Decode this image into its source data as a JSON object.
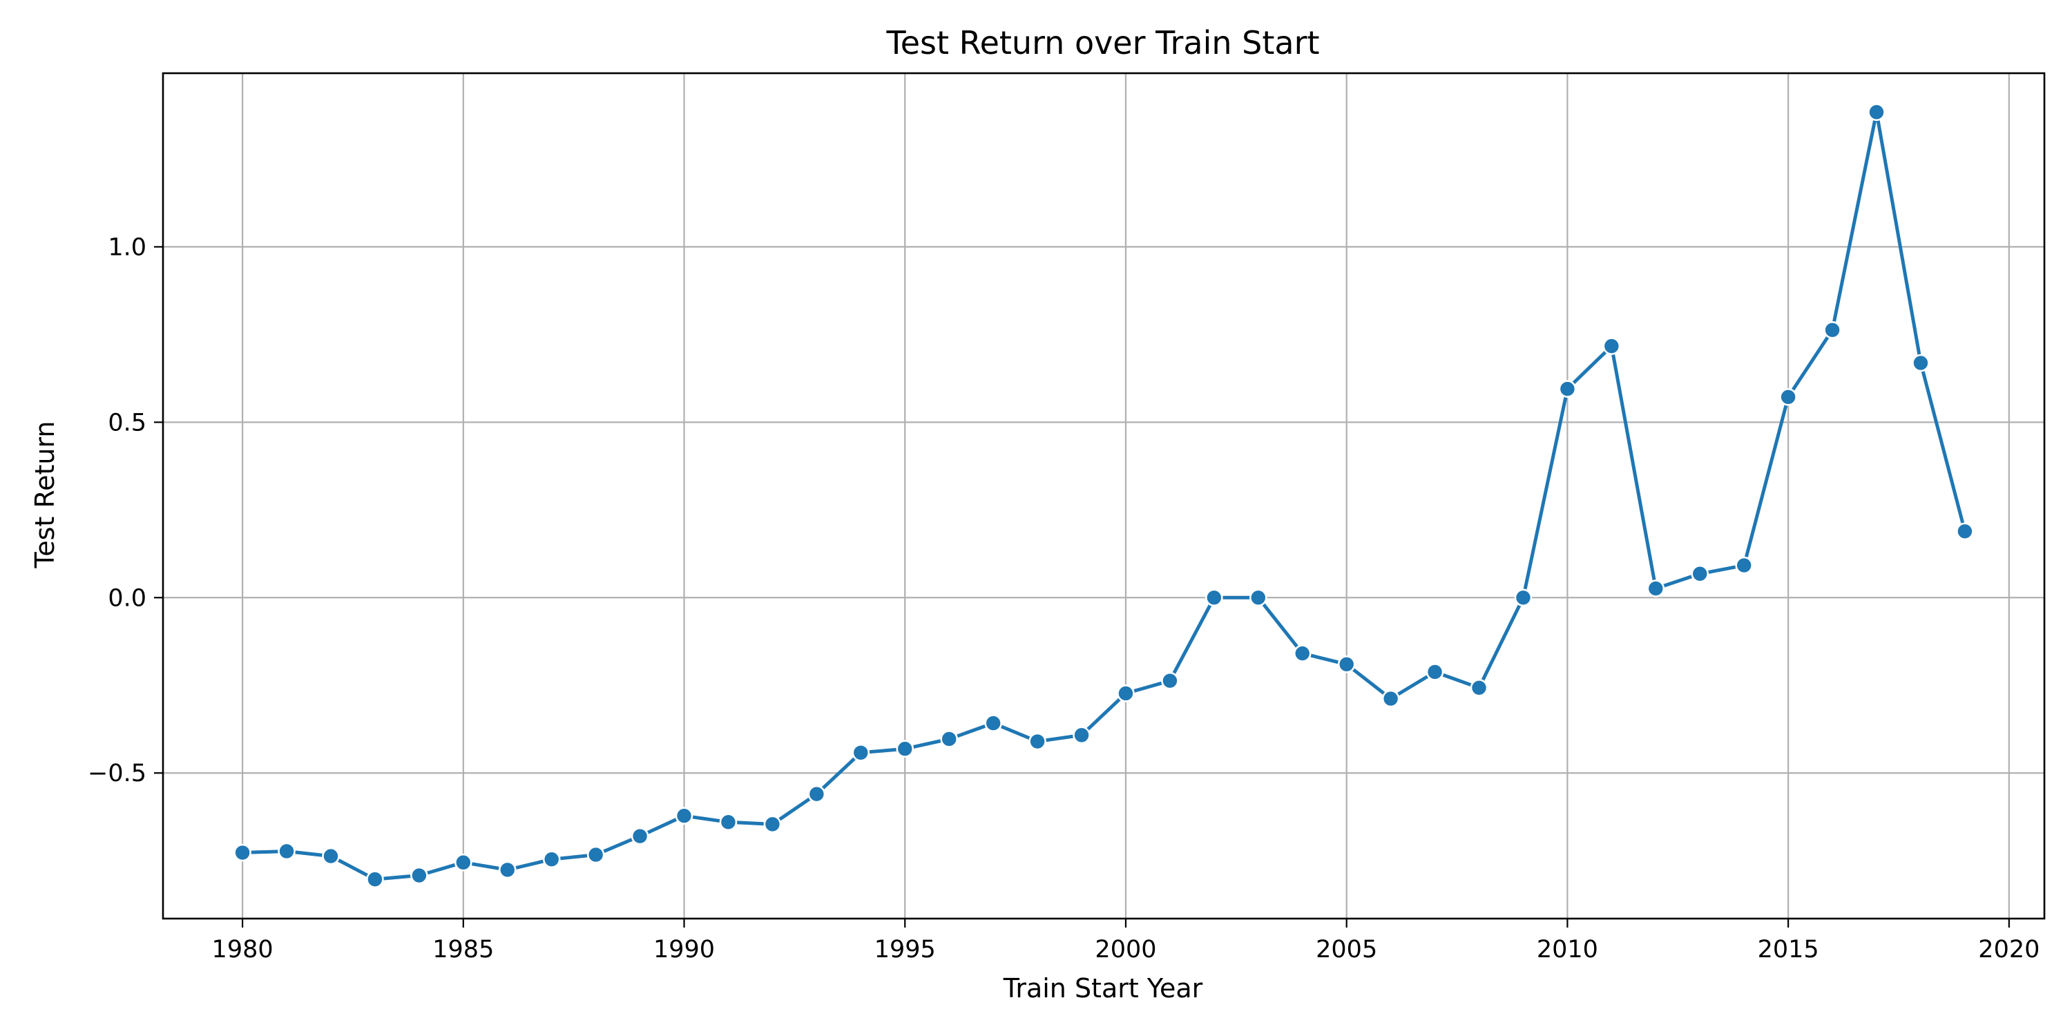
{
  "chart_data": {
    "type": "line",
    "title": "Test Return over Train Start",
    "xlabel": "Train Start Year",
    "ylabel": "Test Return",
    "xlim": [
      1978.2,
      2020.8
    ],
    "ylim": [
      -0.915,
      1.495
    ],
    "xticks": [
      1980,
      1985,
      1990,
      1995,
      2000,
      2005,
      2010,
      2015,
      2020
    ],
    "xtick_labels": [
      "1980",
      "1985",
      "1990",
      "1995",
      "2000",
      "2005",
      "2010",
      "2015",
      "2020"
    ],
    "yticks": [
      -0.5,
      0.0,
      0.5,
      1.0
    ],
    "ytick_labels": [
      "−0.5",
      "0.0",
      "0.5",
      "1.0"
    ],
    "grid": true,
    "marker": "circle",
    "color": "#1f77b4",
    "x": [
      1980,
      1981,
      1982,
      1983,
      1984,
      1985,
      1986,
      1987,
      1988,
      1989,
      1990,
      1991,
      1992,
      1993,
      1994,
      1995,
      1996,
      1997,
      1998,
      1999,
      2000,
      2001,
      2002,
      2003,
      2004,
      2005,
      2006,
      2007,
      2008,
      2009,
      2010,
      2011,
      2012,
      2013,
      2014,
      2015,
      2016,
      2017,
      2018,
      2019
    ],
    "y": [
      -0.727,
      -0.723,
      -0.737,
      -0.803,
      -0.792,
      -0.755,
      -0.776,
      -0.746,
      -0.733,
      -0.68,
      -0.622,
      -0.64,
      -0.646,
      -0.56,
      -0.442,
      -0.431,
      -0.403,
      -0.358,
      -0.41,
      -0.392,
      -0.273,
      -0.237,
      0.0,
      0.0,
      -0.159,
      -0.19,
      -0.288,
      -0.212,
      -0.257,
      0.0,
      0.595,
      0.717,
      0.026,
      0.068,
      0.092,
      0.572,
      0.763,
      1.384,
      0.669,
      0.189
    ]
  }
}
